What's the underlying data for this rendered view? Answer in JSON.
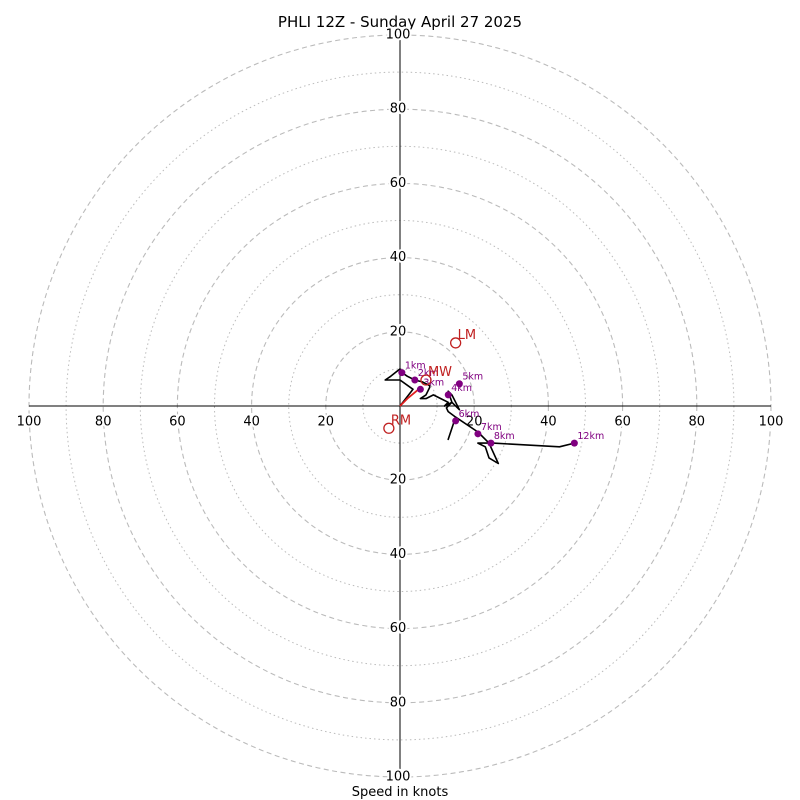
{
  "chart_data": {
    "type": "hodograph",
    "title": "PHLI 12Z - Sunday April 27 2025",
    "xlabel": "Speed in knots",
    "axis_range": [
      -100,
      100
    ],
    "major_rings": [
      20,
      40,
      60,
      80,
      100
    ],
    "minor_rings": [
      10,
      30,
      50,
      70,
      90
    ],
    "tick_values": [
      20,
      40,
      60,
      80,
      100
    ],
    "tick_labels": {
      "top": [
        "20",
        "40",
        "60",
        "80",
        "100"
      ],
      "bottom": [
        "20",
        "40",
        "60",
        "80",
        "100"
      ],
      "left": [
        "20",
        "40",
        "60",
        "80",
        "100"
      ],
      "right": [
        "20",
        "40",
        "60",
        "80",
        "100"
      ]
    },
    "grid": true,
    "colors": {
      "trace": "#000000",
      "lowlevel_segment": "#e02020",
      "height_marker": "#800080",
      "storm_motion": "#c02020",
      "grid": "#bbbbbb",
      "axis": "#000000"
    },
    "hodograph_trace": [
      [
        0,
        0
      ],
      [
        3.5,
        4.5
      ],
      [
        0,
        7
      ],
      [
        -4,
        7
      ],
      [
        -2.5,
        8
      ],
      [
        0,
        10
      ],
      [
        0.5,
        9
      ],
      [
        2,
        8
      ],
      [
        4,
        7
      ],
      [
        6,
        6.5
      ],
      [
        8,
        5.5
      ],
      [
        8,
        5
      ],
      [
        7,
        3
      ],
      [
        5.5,
        2
      ],
      [
        7,
        2
      ],
      [
        9,
        3
      ],
      [
        11,
        2
      ],
      [
        13,
        1
      ],
      [
        12,
        0
      ],
      [
        14,
        1
      ],
      [
        16,
        -1
      ],
      [
        14,
        3
      ],
      [
        13,
        4
      ],
      [
        14,
        1
      ],
      [
        12.5,
        -0.5
      ],
      [
        13,
        -1.5
      ],
      [
        15,
        -3
      ],
      [
        13,
        -9
      ],
      [
        15,
        -3
      ],
      [
        21,
        -7
      ],
      [
        24,
        -10
      ],
      [
        26.5,
        -15.5
      ],
      [
        24,
        -14
      ],
      [
        23,
        -11
      ],
      [
        21,
        -10
      ],
      [
        25,
        -10
      ],
      [
        43,
        -11
      ],
      [
        47,
        -10
      ]
    ],
    "lowlevel_segment": [
      [
        0,
        0
      ],
      [
        2,
        2
      ],
      [
        5,
        4.5
      ]
    ],
    "height_markers": [
      {
        "label": "1km",
        "u": 0.5,
        "v": 9
      },
      {
        "label": "2km",
        "u": 4,
        "v": 7
      },
      {
        "label": "3km",
        "u": 5.5,
        "v": 4.5
      },
      {
        "label": "4km",
        "u": 13,
        "v": 3
      },
      {
        "label": "5km",
        "u": 16,
        "v": 6
      },
      {
        "label": "6km",
        "u": 15,
        "v": -4
      },
      {
        "label": "7km",
        "u": 21,
        "v": -7.5
      },
      {
        "label": "8km",
        "u": 24.5,
        "v": -10
      },
      {
        "label": "12km",
        "u": 47,
        "v": -10
      }
    ],
    "storm_motion": [
      {
        "label": "LM",
        "u": 15,
        "v": 17
      },
      {
        "label": "MW",
        "u": 7,
        "v": 7
      },
      {
        "label": "RM",
        "u": -3,
        "v": -6
      }
    ]
  }
}
